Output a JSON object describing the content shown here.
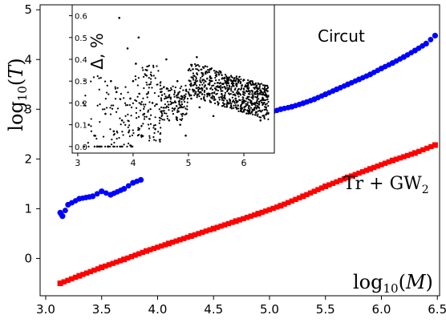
{
  "chart_data": [
    {
      "type": "scatter",
      "xlabel": "log10(M)",
      "ylabel": "log10(T)",
      "xlim": [
        2.95,
        6.52
      ],
      "ylim": [
        -0.75,
        5.1
      ],
      "xticks": [
        "3.0",
        "3.5",
        "4.0",
        "4.5",
        "5.0",
        "5.5",
        "6.0",
        "6.5"
      ],
      "yticks": [
        "0",
        "1",
        "2",
        "3",
        "4",
        "5"
      ],
      "xtick_values": [
        3.0,
        3.5,
        4.0,
        4.5,
        5.0,
        5.5,
        6.0,
        6.5
      ],
      "ytick_values": [
        0,
        1,
        2,
        3,
        4,
        5
      ],
      "series": [
        {
          "name": "Circut",
          "color": "#0000ff",
          "marker": "circle",
          "x": [
            3.13,
            3.15,
            3.2,
            3.3,
            3.42,
            3.5,
            3.58,
            3.7,
            3.78,
            3.85,
            4.8,
            4.9,
            5.0,
            5.1,
            5.2,
            5.3,
            5.4,
            5.5,
            5.6,
            5.7,
            5.8,
            5.9,
            6.0,
            6.1,
            6.2,
            6.3,
            6.4,
            6.48
          ],
          "y": [
            0.92,
            0.85,
            1.08,
            1.2,
            1.25,
            1.35,
            1.28,
            1.4,
            1.52,
            1.58,
            2.8,
            2.86,
            2.93,
            3.0,
            3.05,
            3.12,
            3.2,
            3.3,
            3.4,
            3.5,
            3.6,
            3.7,
            3.82,
            3.93,
            4.05,
            4.18,
            4.32,
            4.48
          ]
        },
        {
          "name": "Tr + GW2",
          "color": "#ff0000",
          "marker": "square",
          "x": [
            3.13,
            3.3,
            3.5,
            3.7,
            3.9,
            4.1,
            4.3,
            4.5,
            4.7,
            4.9,
            5.1,
            5.3,
            5.5,
            5.7,
            5.9,
            6.1,
            6.3,
            6.48
          ],
          "y": [
            -0.5,
            -0.35,
            -0.18,
            -0.02,
            0.15,
            0.3,
            0.45,
            0.6,
            0.75,
            0.9,
            1.06,
            1.25,
            1.45,
            1.63,
            1.8,
            1.97,
            2.12,
            2.28
          ]
        }
      ]
    },
    {
      "type": "scatter",
      "title": "",
      "xlabel": "",
      "ylabel": "Δ, %",
      "xlim": [
        2.9,
        6.55
      ],
      "ylim": [
        -0.03,
        0.65
      ],
      "xticks": [
        "3",
        "4",
        "5",
        "6"
      ],
      "yticks": [
        "0.0",
        "0.1",
        "0.2",
        "0.3",
        "0.4",
        "0.5",
        "0.6"
      ],
      "xtick_values": [
        3,
        4,
        5,
        6
      ],
      "ytick_values": [
        0.0,
        0.1,
        0.2,
        0.3,
        0.4,
        0.5,
        0.6
      ],
      "series": [
        {
          "color": "#000000",
          "marker": "dot",
          "x": [
            3.1,
            3.2,
            3.3,
            3.4,
            3.5,
            3.6,
            3.7,
            3.8,
            3.75,
            3.9,
            4.0,
            4.1,
            4.2,
            4.25,
            4.35,
            4.5,
            4.6,
            4.7,
            4.8,
            4.9,
            5.0,
            5.05,
            5.15,
            5.2,
            5.3,
            5.4,
            5.5,
            5.6,
            5.7,
            5.8,
            5.85,
            5.9,
            6.0,
            6.05,
            6.1,
            6.2,
            6.3,
            6.4,
            5.75,
            5.95,
            5.55,
            5.45,
            4.95,
            4.85,
            4.65,
            4.4,
            3.65,
            3.95,
            4.05,
            4.15,
            3.55,
            3.35
          ],
          "y": [
            0.2,
            0.1,
            0.05,
            0.0,
            0.15,
            0.3,
            0.25,
            0.12,
            0.59,
            0.45,
            0.3,
            0.5,
            0.15,
            0.35,
            0.2,
            0.25,
            0.4,
            0.2,
            0.3,
            0.15,
            0.35,
            0.22,
            0.41,
            0.18,
            0.28,
            0.3,
            0.26,
            0.24,
            0.3,
            0.28,
            0.22,
            0.3,
            0.25,
            0.22,
            0.16,
            0.2,
            0.12,
            0.18,
            0.21,
            0.19,
            0.33,
            0.14,
            0.05,
            0.1,
            0.12,
            0.08,
            0.07,
            0.22,
            0.38,
            0.05,
            0.0,
            0.0
          ]
        }
      ]
    }
  ]
}
